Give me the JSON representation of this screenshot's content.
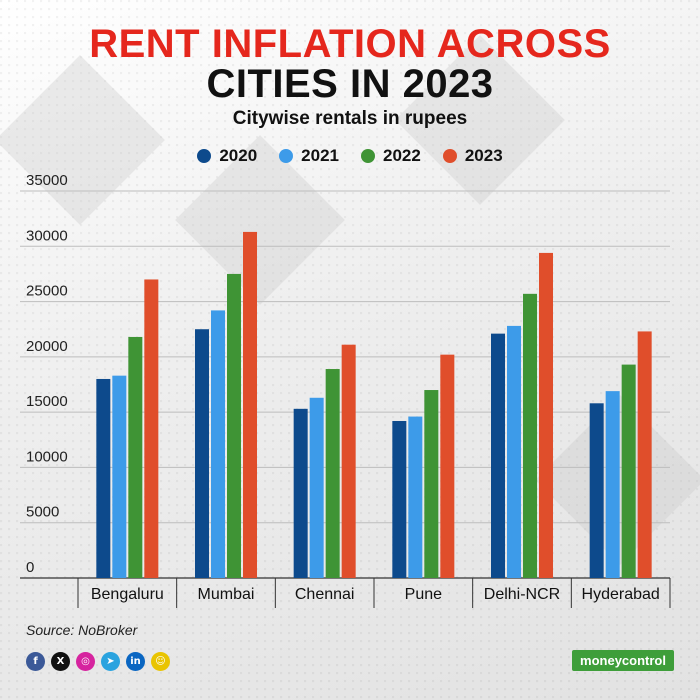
{
  "title_line1": "RENT INFLATION ACROSS",
  "title_line2": "CITIES IN 2023",
  "subtitle": "Citywise rentals in rupees",
  "source": "Source: NoBroker",
  "brand": "moneycontrol",
  "social_icons": [
    {
      "name": "facebook-icon",
      "glyph": "f",
      "color": "#3b5998"
    },
    {
      "name": "x-icon",
      "glyph": "X",
      "color": "#111111"
    },
    {
      "name": "instagram-icon",
      "glyph": "◎",
      "color": "#d6249f"
    },
    {
      "name": "telegram-icon",
      "glyph": "➤",
      "color": "#2aa3df"
    },
    {
      "name": "linkedin-icon",
      "glyph": "in",
      "color": "#0a66c2"
    },
    {
      "name": "snapchat-icon",
      "glyph": "☺",
      "color": "#e9c400"
    }
  ],
  "chart_data": {
    "type": "bar",
    "categories": [
      "Bengaluru",
      "Mumbai",
      "Chennai",
      "Pune",
      "Delhi-NCR",
      "Hyderabad"
    ],
    "series": [
      {
        "name": "2020",
        "color": "#0d4a8c",
        "values": [
          18000,
          22500,
          15300,
          14200,
          22100,
          15800
        ]
      },
      {
        "name": "2021",
        "color": "#3d9be9",
        "values": [
          18300,
          24200,
          16300,
          14600,
          22800,
          16900
        ]
      },
      {
        "name": "2022",
        "color": "#3f9435",
        "values": [
          21800,
          27500,
          18900,
          17000,
          25700,
          19300
        ]
      },
      {
        "name": "2023",
        "color": "#e04e2b",
        "values": [
          27000,
          31300,
          21100,
          20200,
          29400,
          22300
        ]
      }
    ],
    "y_ticks": [
      0,
      5000,
      10000,
      15000,
      20000,
      25000,
      30000,
      35000
    ],
    "ylim": [
      0,
      35000
    ],
    "grid": true,
    "legend_position": "top"
  }
}
